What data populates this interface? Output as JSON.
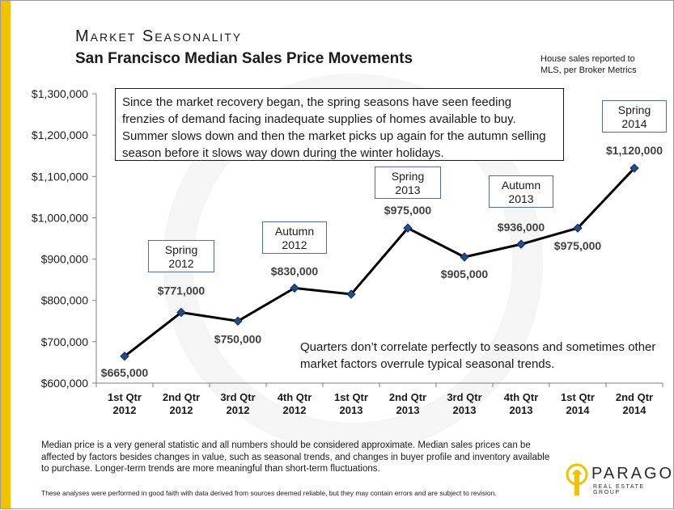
{
  "heading": "Market Seasonality",
  "subheading": "San Francisco Median Sales Price Movements",
  "source_note": "House sales reported to MLS, per Broker Metrics",
  "intro_text": "Since the market recovery began, the spring seasons have seen feeding frenzies of demand facing inadequate supplies of homes available to buy. Summer slows down and then the market picks up again for the autumn selling season before it slows way down during the winter holidays.",
  "quarters_note": "Quarters don’t correlate perfectly to seasons and sometimes other market factors overrule typical seasonal trends.",
  "footnote": "Median price is a very general statistic and all numbers should be considered approximate. Median sales prices can be affected by factors besides changes in value, such as seasonal trends, and changes in buyer profile and inventory available to purchase. Longer-term trends are more meaningful than short-term fluctuations.",
  "disclaimer": "These analyses were performed in good faith with data derived from sources deemed reliable, but they may contain errors and are subject to revision.",
  "logo": {
    "name": "PARAGON",
    "tagline": "REAL ESTATE GROUP"
  },
  "colors": {
    "accent": "#f2c200",
    "line": "#000000",
    "marker": "#1f4e8c",
    "callout_border": "#4a6fa5"
  },
  "chart_data": {
    "type": "line",
    "categories": [
      "1st Qtr 2012",
      "2nd Qtr 2012",
      "3rd Qtr 2012",
      "4th Qtr 2012",
      "1st Qtr 2013",
      "2nd Qtr 2013",
      "3rd Qtr 2013",
      "4th Qtr 2013",
      "1st Qtr 2014",
      "2nd Qtr 2014"
    ],
    "category_lines": [
      [
        "1st Qtr",
        "2012"
      ],
      [
        "2nd Qtr",
        "2012"
      ],
      [
        "3rd Qtr",
        "2012"
      ],
      [
        "4th Qtr",
        "2012"
      ],
      [
        "1st Qtr",
        "2013"
      ],
      [
        "2nd Qtr",
        "2013"
      ],
      [
        "3rd Qtr",
        "2013"
      ],
      [
        "4th Qtr",
        "2013"
      ],
      [
        "1st Qtr",
        "2014"
      ],
      [
        "2nd Qtr",
        "2014"
      ]
    ],
    "series": [
      {
        "values": [
          665000,
          771000,
          750000,
          830000,
          815000,
          975000,
          905000,
          936000,
          975000,
          1120000
        ]
      }
    ],
    "data_labels": [
      "$665,000",
      "$771,000",
      "$750,000",
      "$830,000",
      null,
      "$975,000",
      "$905,000",
      "$936,000",
      "$975,000",
      "$1,120,000"
    ],
    "ylim": [
      600000,
      1300000
    ],
    "yticks": [
      600000,
      700000,
      800000,
      900000,
      1000000,
      1100000,
      1200000,
      1300000
    ],
    "ytick_labels": [
      "$600,000",
      "$700,000",
      "$800,000",
      "$900,000",
      "$1,000,000",
      "$1,100,000",
      "$1,200,000",
      "$1,300,000"
    ],
    "grid": false,
    "annotations": [
      {
        "lines": [
          "Spring",
          "2012"
        ],
        "category_index": 1
      },
      {
        "lines": [
          "Autumn",
          "2012"
        ],
        "category_index": 3
      },
      {
        "lines": [
          "Spring",
          "2013"
        ],
        "category_index": 5
      },
      {
        "lines": [
          "Autumn",
          "2013"
        ],
        "category_index": 7
      },
      {
        "lines": [
          "Spring",
          "2014"
        ],
        "category_index": 9
      }
    ]
  }
}
